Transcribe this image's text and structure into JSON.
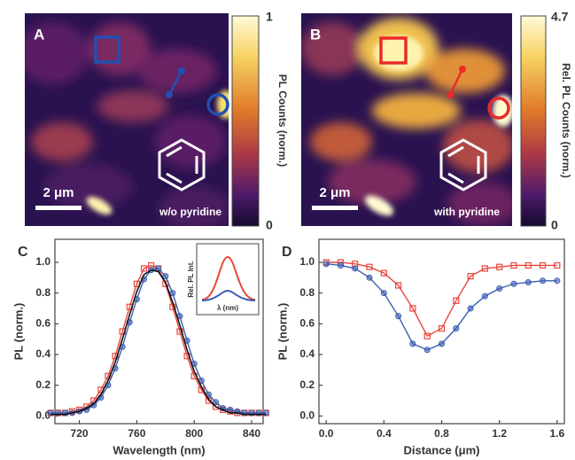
{
  "panels": [
    {
      "letter": "A",
      "scale_label": "2 μm",
      "annotation": "w/o pyridine",
      "colorbar_label": "PL Counts (norm.)",
      "colorbar_ticks": [
        0,
        1
      ]
    },
    {
      "letter": "B",
      "scale_label": "2 μm",
      "annotation": "with pyridine",
      "colorbar_label": "Rel. PL Counts (norm.)",
      "colorbar_ticks": [
        0,
        4.7
      ]
    }
  ],
  "chart_data": [
    {
      "type": "line",
      "letter": "C",
      "xlabel": "Wavelength (nm)",
      "ylabel": "PL (norm.)",
      "inset": {
        "ylabel": "Rel. PL Int.",
        "xlabel": "λ (nm)"
      },
      "x": [
        700,
        705,
        710,
        715,
        720,
        725,
        730,
        735,
        740,
        745,
        750,
        755,
        760,
        765,
        770,
        775,
        780,
        785,
        790,
        795,
        800,
        805,
        810,
        815,
        820,
        825,
        830,
        835,
        840,
        845,
        850
      ],
      "series": [
        {
          "color": "#e8473c",
          "marker": "square",
          "values": [
            0.02,
            0.02,
            0.02,
            0.03,
            0.04,
            0.06,
            0.1,
            0.17,
            0.26,
            0.39,
            0.55,
            0.71,
            0.86,
            0.96,
            0.98,
            0.96,
            0.86,
            0.71,
            0.55,
            0.39,
            0.26,
            0.17,
            0.1,
            0.06,
            0.04,
            0.03,
            0.02,
            0.02,
            0.02,
            0.02,
            0.02
          ]
        },
        {
          "color": "#3a5db0",
          "marker": "circle",
          "values": [
            0.02,
            0.02,
            0.02,
            0.02,
            0.03,
            0.04,
            0.07,
            0.12,
            0.2,
            0.31,
            0.45,
            0.61,
            0.76,
            0.89,
            0.95,
            0.96,
            0.91,
            0.8,
            0.65,
            0.49,
            0.34,
            0.23,
            0.14,
            0.09,
            0.05,
            0.04,
            0.03,
            0.02,
            0.02,
            0.02,
            0.02
          ]
        },
        {
          "color": "#111111",
          "marker": "none",
          "values": [
            0.01,
            0.01,
            0.01,
            0.02,
            0.03,
            0.05,
            0.08,
            0.14,
            0.23,
            0.35,
            0.5,
            0.66,
            0.81,
            0.92,
            0.95,
            0.94,
            0.87,
            0.74,
            0.59,
            0.43,
            0.29,
            0.19,
            0.11,
            0.06,
            0.04,
            0.02,
            0.02,
            0.01,
            0.01,
            0.01,
            0.01
          ]
        }
      ],
      "xlim": [
        703,
        848
      ],
      "xticks": [
        720,
        760,
        800,
        840
      ],
      "ylim": [
        -0.05,
        1.15
      ],
      "yticks": [
        {
          "value": 0,
          "label": "0.0"
        },
        0.2,
        0.4,
        0.6,
        0.8,
        {
          "value": 1,
          "label": "1.0"
        }
      ]
    },
    {
      "type": "line",
      "letter": "D",
      "xlabel": "Distance (μm)",
      "ylabel": "PL (norm.)",
      "x": [
        0,
        0.1,
        0.2,
        0.3,
        0.4,
        0.5,
        0.6,
        0.7,
        0.8,
        0.9,
        1.0,
        1.1,
        1.2,
        1.3,
        1.4,
        1.5,
        1.6
      ],
      "series": [
        {
          "color": "#e8473c",
          "marker": "square",
          "values": [
            1.0,
            1.0,
            0.99,
            0.97,
            0.93,
            0.85,
            0.7,
            0.52,
            0.57,
            0.75,
            0.91,
            0.96,
            0.97,
            0.98,
            0.98,
            0.98,
            0.98
          ]
        },
        {
          "color": "#3a5db0",
          "marker": "circle",
          "values": [
            0.99,
            0.98,
            0.96,
            0.9,
            0.8,
            0.65,
            0.47,
            0.43,
            0.47,
            0.57,
            0.7,
            0.78,
            0.83,
            0.86,
            0.87,
            0.88,
            0.88
          ]
        }
      ],
      "xlim": [
        -0.05,
        1.65
      ],
      "xticks": [
        {
          "value": 0,
          "label": "0.0"
        },
        0.4,
        0.8,
        1.2,
        1.6
      ],
      "ylim": [
        -0.05,
        1.15
      ],
      "yticks": [
        {
          "value": 0,
          "label": "0.0"
        },
        0.2,
        0.4,
        0.6,
        0.8,
        {
          "value": 1,
          "label": "1.0"
        }
      ]
    }
  ]
}
